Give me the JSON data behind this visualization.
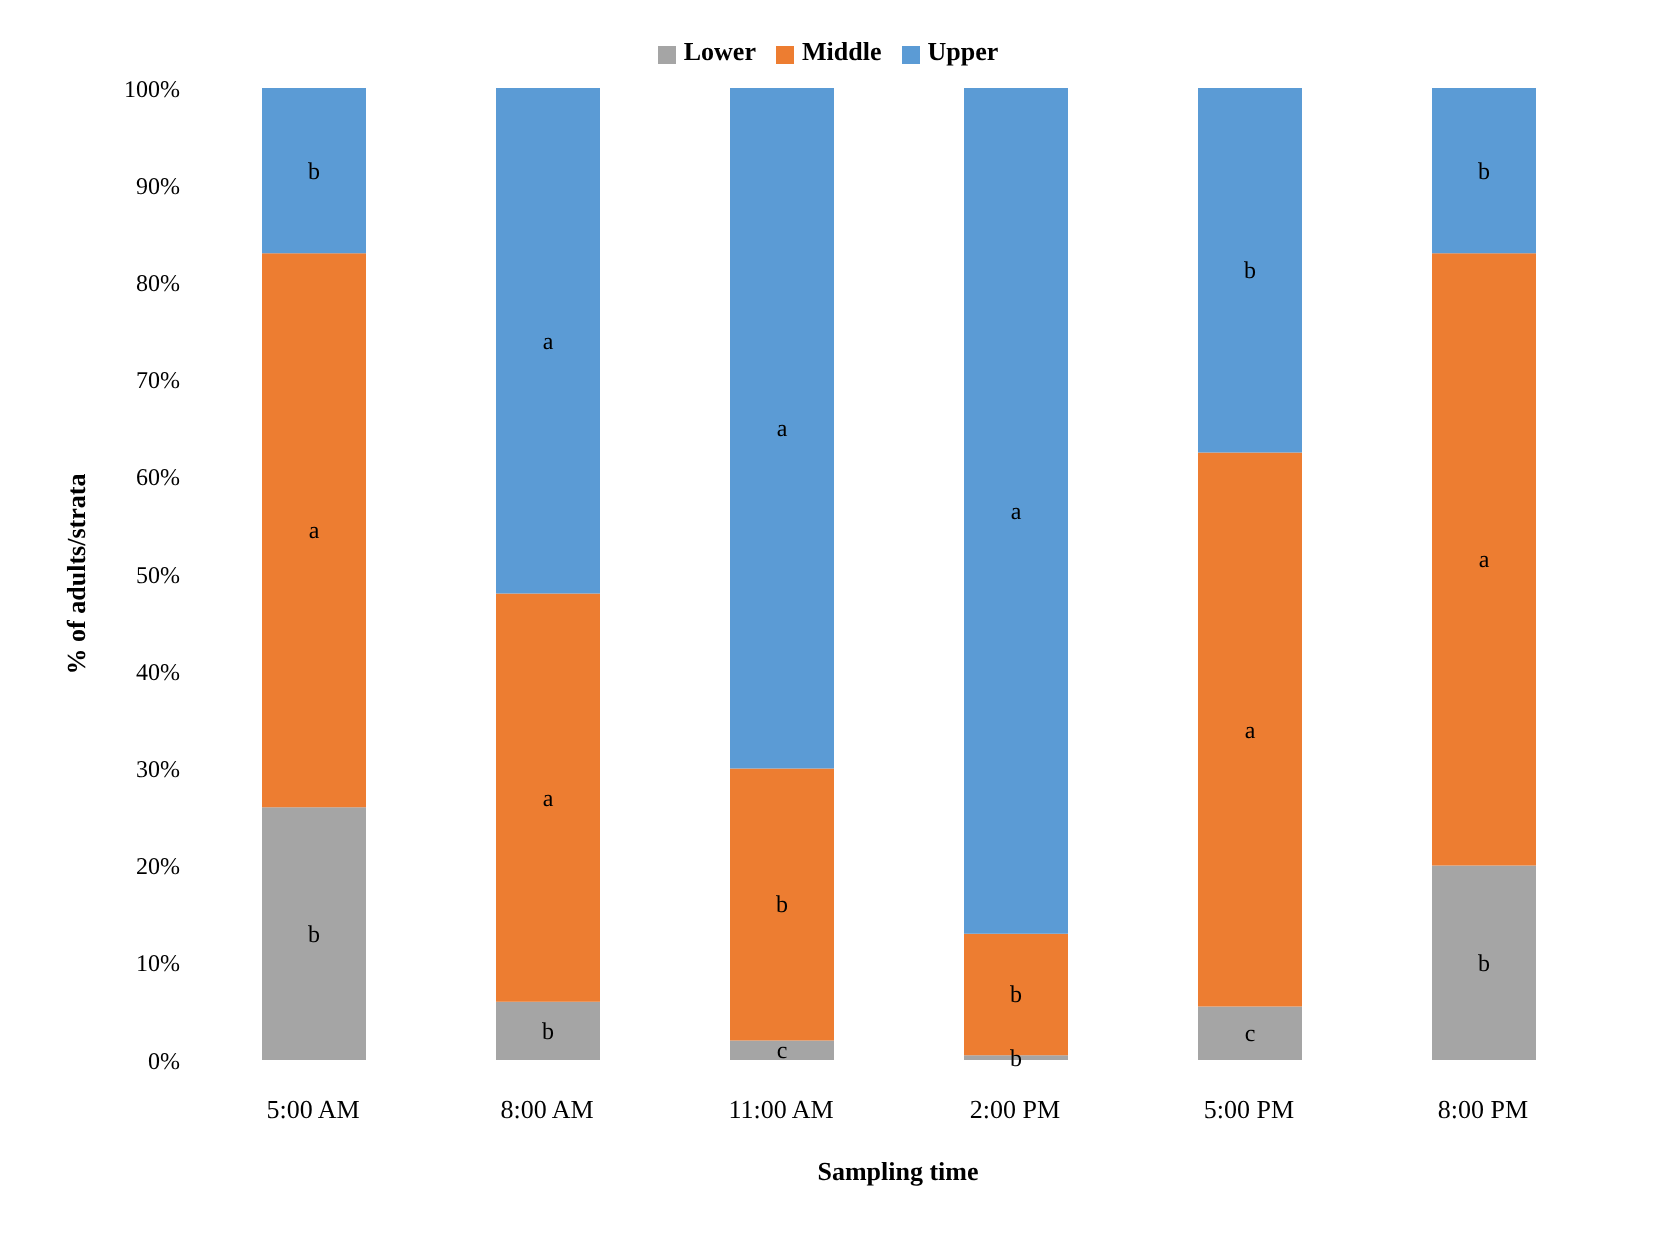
{
  "chart_data": {
    "type": "bar",
    "stacked": true,
    "xlabel": "Sampling time",
    "ylabel": "% of adults/strata",
    "categories": [
      "5:00 AM",
      "8:00 AM",
      "11:00 AM",
      "2:00 PM",
      "5:00 PM",
      "8:00 PM"
    ],
    "series": [
      {
        "name": "Lower",
        "color": "#a5a5a5",
        "values": [
          26,
          6,
          2,
          0.5,
          5.5,
          20
        ],
        "value_labels": [
          "b",
          "b",
          "c",
          "b",
          "c",
          "b"
        ]
      },
      {
        "name": "Middle",
        "color": "#ed7d31",
        "values": [
          57,
          42,
          28,
          12.5,
          57,
          63
        ],
        "value_labels": [
          "a",
          "a",
          "b",
          "b",
          "a",
          "a"
        ]
      },
      {
        "name": "Upper",
        "color": "#5b9bd5",
        "values": [
          17,
          52,
          70,
          87,
          37.5,
          17
        ],
        "value_labels": [
          "b",
          "a",
          "a",
          "a",
          "b",
          "b"
        ]
      }
    ],
    "ylim": [
      0,
      100
    ],
    "yticks": [
      {
        "value": 0,
        "label": "0%"
      },
      {
        "value": 10,
        "label": "10%"
      },
      {
        "value": 20,
        "label": "20%"
      },
      {
        "value": 30,
        "label": "30%"
      },
      {
        "value": 40,
        "label": "40%"
      },
      {
        "value": 50,
        "label": "50%"
      },
      {
        "value": 60,
        "label": "60%"
      },
      {
        "value": 70,
        "label": "70%"
      },
      {
        "value": 80,
        "label": "80%"
      },
      {
        "value": 90,
        "label": "90%"
      },
      {
        "value": 100,
        "label": "100%"
      }
    ],
    "grid": false,
    "legend": "top"
  }
}
